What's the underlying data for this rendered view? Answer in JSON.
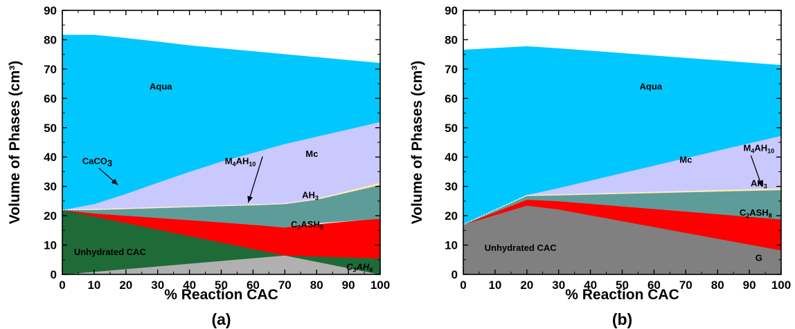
{
  "chart_data": [
    {
      "type": "area",
      "panel_label": "(a)",
      "xlabel": "% Reaction CAC",
      "ylabel": "Volume of Phases (cm³)",
      "xlim": [
        0,
        100
      ],
      "ylim": [
        0,
        90
      ],
      "x_ticks": [
        0,
        10,
        20,
        30,
        40,
        50,
        60,
        70,
        80,
        90,
        100
      ],
      "y_ticks": [
        0,
        10,
        20,
        30,
        40,
        50,
        60,
        70,
        80,
        90
      ],
      "stack_order": [
        "Unhydrated CAC",
        "C3AH6",
        "C2ASH8",
        "AH3",
        "M4AH10",
        "CaCO3",
        "Mc",
        "Aqua"
      ],
      "series": [
        {
          "name": "Unhydrated CAC",
          "label": "Unhydrated CAC",
          "color": "#b0b0b0",
          "x": [
            0,
            100
          ],
          "lower": [
            0,
            0
          ],
          "upper": [
            22,
            0
          ]
        },
        {
          "name": "C3AH6",
          "label": "C₃AH₆",
          "color": "#1e6b38",
          "x": [
            0,
            70,
            100
          ],
          "lower": [
            0,
            6.5,
            0
          ],
          "upper": [
            22,
            6.5,
            5.5
          ]
        },
        {
          "name": "C2ASH8",
          "label": "C₂ASH₈",
          "color": "#ff0000",
          "x": [
            0,
            70,
            100
          ],
          "lower": [
            22,
            6.5,
            5.5
          ],
          "upper": [
            22,
            16,
            19
          ]
        },
        {
          "name": "AH3",
          "label": "AH₃",
          "color": "#5e9c9a",
          "x": [
            0,
            10,
            60,
            70,
            80,
            100
          ],
          "lower": [
            22,
            20.8,
            17,
            16,
            17.5,
            19
          ],
          "upper": [
            22,
            22,
            23.6,
            24,
            25.5,
            30.5
          ]
        },
        {
          "name": "M4AH10",
          "label": "M₄AH₁₀",
          "color": "#ffe08a",
          "x": [
            0,
            10,
            60,
            70,
            80,
            100
          ],
          "lower": [
            22,
            22,
            23.6,
            24,
            25.5,
            30.5
          ],
          "upper": [
            22,
            22.3,
            23.9,
            24.3,
            25.8,
            31.3
          ]
        },
        {
          "name": "CaCO3",
          "label": "CaCO₃",
          "color": "#f07d1e",
          "x": [
            0,
            10,
            30
          ],
          "lower": [
            22,
            22.3,
            31
          ],
          "upper": [
            22.2,
            24,
            31.3
          ]
        },
        {
          "name": "Mc",
          "label": "Mc",
          "color": "#c9c9ff",
          "x": [
            0,
            10,
            30,
            40,
            50,
            60,
            70,
            80,
            100
          ],
          "lower": [
            22,
            22.3,
            23,
            23.2,
            23.4,
            23.9,
            24.3,
            25.8,
            31.3
          ],
          "upper": [
            22,
            24,
            31.3,
            35,
            38.5,
            41.5,
            44.5,
            47,
            52
          ]
        },
        {
          "name": "Aqua",
          "label": "Aqua",
          "color": "#00c8ff",
          "x": [
            0,
            10,
            20,
            30,
            40,
            50,
            60,
            70,
            80,
            90,
            100
          ],
          "lower": [
            22,
            24,
            27.5,
            31.3,
            35,
            38.5,
            41.5,
            44.5,
            47,
            49.5,
            52
          ],
          "upper": [
            81.6,
            81.6,
            80.5,
            79.3,
            78,
            77,
            76,
            75,
            74,
            73,
            72
          ]
        }
      ],
      "labels": [
        {
          "text": "Aqua",
          "x": 31,
          "y": 64
        },
        {
          "text": "Mc",
          "x": 78.5,
          "y": 41
        },
        {
          "text": "Unhydrated CAC",
          "x": 15,
          "y": 7.5
        },
        {
          "text": "CaCO3",
          "x": 11,
          "y": 38.5
        }
      ],
      "subscript_labels": [
        {
          "base": "M",
          "sub1": "4",
          "mid": "AH",
          "sub2": "10",
          "x": 56,
          "y": 38.5
        },
        {
          "base": "AH",
          "sub1": "3",
          "mid": "",
          "sub2": "",
          "x": 78,
          "y": 27
        },
        {
          "base": "C",
          "sub1": "2",
          "mid": "ASH",
          "sub2": "8",
          "x": 77,
          "y": 17
        },
        {
          "base": "C",
          "sub1": "3",
          "mid": "AH",
          "sub2": "6",
          "x": 93.5,
          "y": 2.5
        }
      ]
    },
    {
      "type": "area",
      "panel_label": "(b)",
      "xlabel": "% Reaction CAC",
      "ylabel": "Volume of Phases (cm³)",
      "xlim": [
        0,
        100
      ],
      "ylim": [
        0,
        90
      ],
      "x_ticks": [
        0,
        10,
        20,
        30,
        40,
        50,
        60,
        70,
        80,
        90,
        100
      ],
      "y_ticks": [
        0,
        10,
        20,
        30,
        40,
        50,
        60,
        70,
        80,
        90
      ],
      "stack_order": [
        "Unhydrated CAC",
        "G",
        "C2ASH8",
        "AH3",
        "M4AH10",
        "Mc",
        "Aqua"
      ],
      "series": [
        {
          "name": "Unhydrated CAC",
          "label": "Unhydrated CAC",
          "color": "#b0b0b0",
          "x": [
            0,
            100
          ],
          "lower": [
            0,
            0
          ],
          "upper": [
            17,
            0
          ]
        },
        {
          "name": "G",
          "label": "G",
          "color": "#808080",
          "x": [
            0,
            20,
            30,
            100
          ],
          "lower": [
            0,
            0,
            0,
            0
          ],
          "upper": [
            17,
            23.5,
            22.2,
            8.2
          ]
        },
        {
          "name": "C2ASH8",
          "label": "C₂ASH₈",
          "color": "#ff0000",
          "x": [
            0,
            20,
            30,
            100
          ],
          "lower": [
            17,
            23.5,
            22.2,
            8.2
          ],
          "upper": [
            17,
            25.5,
            25,
            18.8
          ]
        },
        {
          "name": "AH3",
          "label": "AH₃",
          "color": "#5e9c9a",
          "x": [
            0,
            20,
            30,
            100
          ],
          "lower": [
            17,
            25.5,
            25,
            18.8
          ],
          "upper": [
            17,
            26.8,
            27,
            28.8
          ]
        },
        {
          "name": "M4AH10",
          "label": "M₄AH₁₀",
          "color": "#ffe08a",
          "x": [
            0,
            20,
            30,
            100
          ],
          "lower": [
            17,
            26.8,
            27,
            28.8
          ],
          "upper": [
            17,
            27.1,
            27.3,
            29.4
          ]
        },
        {
          "name": "Mc",
          "label": "Mc",
          "color": "#c9c9ff",
          "x": [
            0,
            20,
            30,
            100
          ],
          "lower": [
            17,
            27.1,
            27.3,
            29.4
          ],
          "upper": [
            17,
            27.1,
            29.5,
            47.3
          ]
        },
        {
          "name": "Aqua",
          "label": "Aqua",
          "color": "#00c8ff",
          "x": [
            0,
            20,
            30,
            100
          ],
          "lower": [
            17,
            27.1,
            29.5,
            47.3
          ],
          "upper": [
            76.5,
            77.7,
            77,
            71.3
          ]
        }
      ],
      "labels": [
        {
          "text": "Aqua",
          "x": 59,
          "y": 64
        },
        {
          "text": "Mc",
          "x": 70,
          "y": 39
        },
        {
          "text": "Unhydrated CAC",
          "x": 18,
          "y": 9
        },
        {
          "text": "G",
          "x": 93,
          "y": 5.5
        }
      ],
      "subscript_labels": [
        {
          "base": "M",
          "sub1": "4",
          "mid": "AH",
          "sub2": "10",
          "x": 93,
          "y": 43
        },
        {
          "base": "AH",
          "sub1": "3",
          "mid": "",
          "sub2": "",
          "x": 93,
          "y": 31
        },
        {
          "base": "C",
          "sub1": "2",
          "mid": "ASH",
          "sub2": "8",
          "x": 92,
          "y": 21
        }
      ]
    }
  ]
}
